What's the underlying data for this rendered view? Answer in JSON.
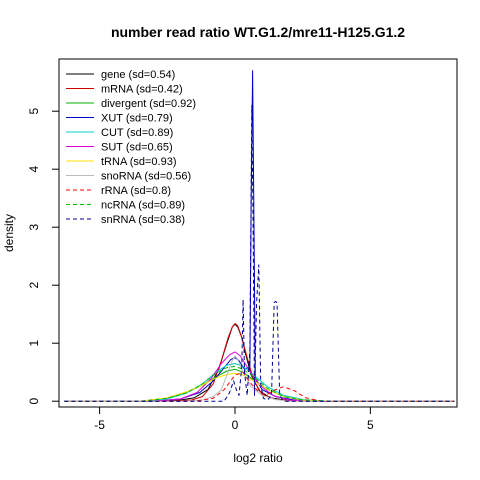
{
  "chart_data": {
    "type": "line",
    "title": "number read ratio WT.G1.2/mre11-H125.G1.2",
    "xlabel": "log2 ratio",
    "ylabel": "density",
    "xlim": [
      -6.5,
      8.2
    ],
    "ylim": [
      -0.1,
      5.9
    ],
    "xticks": [
      -5,
      0,
      5
    ],
    "yticks": [
      0,
      1,
      2,
      3,
      4,
      5
    ],
    "grid": false,
    "legend_position": "top-left",
    "series": [
      {
        "name": "gene (sd=0.54)",
        "color": "#000000",
        "dash": "solid",
        "x": [
          -6.3,
          -3,
          -2.0,
          -1.5,
          -1.0,
          -0.6,
          -0.3,
          -0.1,
          0.0,
          0.1,
          0.25,
          0.4,
          0.6,
          0.9,
          1.3,
          2.0,
          3.0,
          8.1
        ],
        "y": [
          0,
          0,
          0.02,
          0.06,
          0.2,
          0.55,
          1.0,
          1.28,
          1.33,
          1.28,
          1.1,
          0.8,
          0.45,
          0.18,
          0.06,
          0.01,
          0,
          0
        ]
      },
      {
        "name": "mRNA (sd=0.42)",
        "color": "#cc0000",
        "dash": "solid",
        "x": [
          -6.3,
          -2.5,
          -1.6,
          -1.2,
          -0.8,
          -0.5,
          -0.25,
          -0.1,
          0.0,
          0.1,
          0.25,
          0.45,
          0.7,
          1.0,
          1.5,
          2.5,
          8.1
        ],
        "y": [
          0,
          0,
          0.02,
          0.08,
          0.3,
          0.7,
          1.1,
          1.28,
          1.34,
          1.3,
          1.1,
          0.75,
          0.35,
          0.12,
          0.03,
          0,
          0
        ]
      },
      {
        "name": "divergent (sd=0.92)",
        "color": "#00b000",
        "dash": "solid",
        "x": [
          -6.3,
          -3.5,
          -2.5,
          -1.8,
          -1.2,
          -0.7,
          -0.3,
          0.0,
          0.3,
          0.7,
          1.2,
          1.8,
          2.5,
          3.5,
          8.1
        ],
        "y": [
          0,
          0,
          0.05,
          0.15,
          0.28,
          0.42,
          0.52,
          0.55,
          0.5,
          0.36,
          0.2,
          0.08,
          0.02,
          0,
          0
        ]
      },
      {
        "name": "XUT (sd=0.79)",
        "color": "#0000cc",
        "dash": "solid",
        "x": [
          -6.3,
          -3,
          -2.0,
          -1.3,
          -0.8,
          -0.4,
          -0.15,
          0.0,
          0.15,
          0.35,
          0.55,
          0.6,
          0.65,
          0.7,
          0.75,
          1.0,
          1.5,
          2.2,
          3,
          8.1
        ],
        "y": [
          0,
          0,
          0.04,
          0.15,
          0.35,
          0.58,
          0.72,
          0.75,
          0.7,
          0.55,
          0.6,
          3.5,
          5.7,
          3.2,
          0.4,
          0.2,
          0.08,
          0.02,
          0,
          0
        ]
      },
      {
        "name": "CUT (sd=0.89)",
        "color": "#00cccc",
        "dash": "solid",
        "x": [
          -6.3,
          -3.5,
          -2.5,
          -1.8,
          -1.2,
          -0.7,
          -0.3,
          0.0,
          0.3,
          0.7,
          1.2,
          1.8,
          2.5,
          3.5,
          8.1
        ],
        "y": [
          0,
          0,
          0.04,
          0.14,
          0.3,
          0.5,
          0.62,
          0.65,
          0.6,
          0.45,
          0.25,
          0.1,
          0.03,
          0,
          0
        ]
      },
      {
        "name": "SUT (sd=0.65)",
        "color": "#dd00dd",
        "dash": "solid",
        "x": [
          -6.3,
          -3,
          -2.0,
          -1.4,
          -0.9,
          -0.5,
          -0.2,
          0.0,
          0.2,
          0.5,
          0.9,
          1.4,
          2.0,
          3,
          8.1
        ],
        "y": [
          0,
          0,
          0.04,
          0.15,
          0.38,
          0.65,
          0.8,
          0.85,
          0.78,
          0.55,
          0.28,
          0.1,
          0.02,
          0,
          0
        ]
      },
      {
        "name": "tRNA (sd=0.93)",
        "color": "#ffdd00",
        "dash": "solid",
        "x": [
          -6.3,
          -3.5,
          -2.5,
          -1.8,
          -1.2,
          -0.7,
          -0.3,
          0.0,
          0.3,
          0.7,
          1.2,
          1.8,
          2.5,
          3.5,
          8.1
        ],
        "y": [
          0,
          0,
          0.06,
          0.16,
          0.28,
          0.4,
          0.46,
          0.48,
          0.45,
          0.35,
          0.2,
          0.08,
          0.02,
          0,
          0
        ]
      },
      {
        "name": "snoRNA (sd=0.56)",
        "color": "#bbbbbb",
        "dash": "solid",
        "x": [
          -6.3,
          -2,
          -1.2,
          -0.8,
          -0.5,
          -0.3,
          -0.1,
          0.0,
          0.1,
          0.3,
          0.6,
          1.0,
          1.5,
          2,
          8.1
        ],
        "y": [
          0,
          0,
          0.02,
          0.08,
          0.2,
          0.45,
          0.7,
          0.78,
          0.72,
          0.5,
          0.25,
          0.1,
          0.03,
          0,
          0
        ]
      },
      {
        "name": "rRNA (sd=0.8)",
        "color": "#ff0000",
        "dash": "dashed",
        "x": [
          -6.3,
          -1.5,
          -0.8,
          -0.4,
          0.0,
          0.3,
          0.6,
          0.9,
          1.2,
          1.5,
          1.8,
          2.2,
          2.6,
          3.2,
          8.1
        ],
        "y": [
          0,
          0,
          0.05,
          0.2,
          0.45,
          0.5,
          0.3,
          0.15,
          0.12,
          0.2,
          0.25,
          0.18,
          0.06,
          0,
          0
        ]
      },
      {
        "name": "ncRNA (sd=0.89)",
        "color": "#00bb00",
        "dash": "dashed",
        "x": [
          -6.3,
          -3.5,
          -2.5,
          -1.8,
          -1.2,
          -0.7,
          -0.3,
          0.0,
          0.3,
          0.7,
          1.2,
          1.8,
          2.5,
          3.5,
          8.1
        ],
        "y": [
          0,
          0,
          0.05,
          0.14,
          0.3,
          0.48,
          0.58,
          0.6,
          0.55,
          0.42,
          0.22,
          0.08,
          0.02,
          0,
          0
        ]
      },
      {
        "name": "snRNA (sd=0.38)",
        "color": "#000099",
        "dash": "dashed",
        "x": [
          -6.3,
          -0.4,
          -0.2,
          -0.05,
          0.05,
          0.15,
          0.25,
          0.3,
          0.35,
          0.45,
          0.55,
          0.62,
          0.67,
          0.72,
          0.8,
          0.88,
          0.95,
          1.05,
          1.2,
          1.35,
          1.45,
          1.5,
          1.55,
          1.65,
          1.8,
          8.1
        ],
        "y": [
          0,
          0,
          0.15,
          0.35,
          0.2,
          0.1,
          0.6,
          1.75,
          0.5,
          0.1,
          0.9,
          5.1,
          3.0,
          0.1,
          1.7,
          2.35,
          0.3,
          0.05,
          0.02,
          0.1,
          1.7,
          1.72,
          1.7,
          0.1,
          0,
          0
        ]
      }
    ]
  }
}
